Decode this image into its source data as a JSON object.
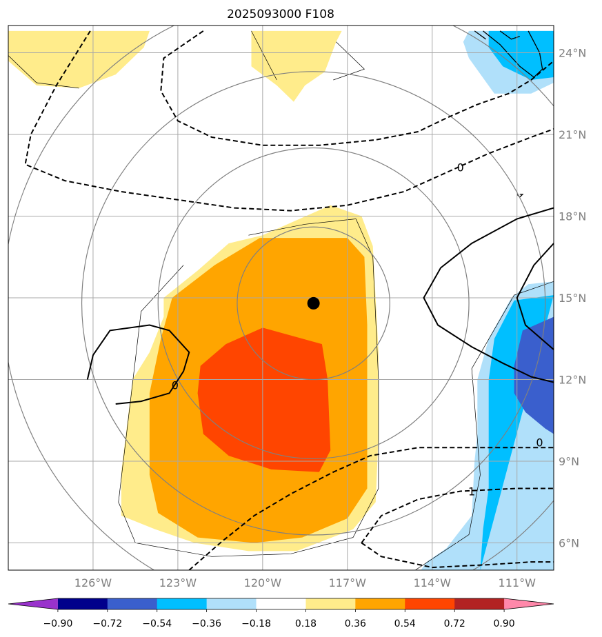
{
  "chart_data": {
    "type": "heatmap",
    "title": "2025093000 F108",
    "map": {
      "lon_range": [
        -129,
        -109.7
      ],
      "lat_range": [
        5,
        25
      ],
      "lon_ticks": [
        -126,
        -123,
        -120,
        -117,
        -114,
        -111
      ],
      "lon_tick_labels": [
        "126°W",
        "123°W",
        "120°W",
        "117°W",
        "114°W",
        "111°W"
      ],
      "lat_ticks": [
        6,
        9,
        12,
        15,
        18,
        21,
        24
      ],
      "lat_tick_labels": [
        "6°N",
        "9°N",
        "12°N",
        "15°N",
        "18°N",
        "21°N",
        "24°N"
      ],
      "lat_labels_side": "right",
      "grid": true,
      "center_marker": {
        "lon": -118.2,
        "lat": 14.8
      },
      "range_rings": [
        {
          "lon": -118.2,
          "lat": 14.8,
          "radius_deg": 2.7
        },
        {
          "lon": -118.2,
          "lat": 14.8,
          "radius_deg": 5.5
        },
        {
          "lon": -118.2,
          "lat": 14.8,
          "radius_deg": 8.2
        },
        {
          "lon": -118.2,
          "lat": 14.8,
          "radius_deg": 11.0
        }
      ]
    },
    "colorbar": {
      "boundaries": [
        -0.9,
        -0.72,
        -0.54,
        -0.36,
        -0.18,
        0.18,
        0.36,
        0.54,
        0.72,
        0.9
      ],
      "tick_labels": [
        "−0.90",
        "−0.72",
        "−0.54",
        "−0.36",
        "−0.18",
        "0.18",
        "0.36",
        "0.54",
        "0.72",
        "0.90"
      ],
      "colors": [
        "#9932cc",
        "#00008b",
        "#3a5fcd",
        "#00bfff",
        "#b0e0fa",
        "#ffffff",
        "#ffec8b",
        "#ffa500",
        "#ff4500",
        "#b22222",
        "#ff88aa"
      ],
      "extend": "both"
    },
    "filled_regions": [
      {
        "level": 0.18,
        "color": "#ffec8b",
        "polygons": [
          [
            [
              -124,
              24.8
            ],
            [
              -126.5,
              24.8
            ],
            [
              -129,
              24.8
            ],
            [
              -129,
              23.7
            ],
            [
              -128,
              22.8
            ],
            [
              -126.5,
              22.7
            ],
            [
              -125.2,
              23.2
            ],
            [
              -124.2,
              24.2
            ]
          ],
          [
            [
              -120.4,
              24.8
            ],
            [
              -120.4,
              23.5
            ],
            [
              -119.5,
              22.8
            ],
            [
              -118.9,
              22.2
            ],
            [
              -118.5,
              22.8
            ],
            [
              -117.8,
              23.3
            ],
            [
              -117.4,
              24.4
            ],
            [
              -117.2,
              24.8
            ]
          ],
          [
            [
              -120,
              17.3
            ],
            [
              -117.6,
              18.4
            ],
            [
              -116.5,
              18
            ],
            [
              -116.1,
              16.9
            ],
            [
              -115.9,
              13
            ],
            [
              -115.9,
              10
            ],
            [
              -116,
              7.5
            ],
            [
              -116.8,
              6.5
            ],
            [
              -118.8,
              5.7
            ],
            [
              -120.5,
              5.7
            ],
            [
              -122.4,
              6
            ],
            [
              -123.8,
              6.5
            ],
            [
              -125,
              7
            ],
            [
              -125,
              8.6
            ],
            [
              -124.6,
              12
            ],
            [
              -124,
              13
            ],
            [
              -123.5,
              14.3
            ],
            [
              -123.5,
              15
            ],
            [
              -122.3,
              16
            ],
            [
              -121.2,
              17
            ]
          ]
        ]
      },
      {
        "level": 0.36,
        "color": "#ffa500",
        "polygons": [
          [
            [
              -120.1,
              17.2
            ],
            [
              -117,
              17.2
            ],
            [
              -116.4,
              16.5
            ],
            [
              -116.3,
              14
            ],
            [
              -116.3,
              10
            ],
            [
              -116.3,
              8
            ],
            [
              -117,
              6.9
            ],
            [
              -118.6,
              6.2
            ],
            [
              -120.3,
              6
            ],
            [
              -122.3,
              6.2
            ],
            [
              -123.7,
              7.1
            ],
            [
              -124,
              8.5
            ],
            [
              -124,
              11.5
            ],
            [
              -123.6,
              13.5
            ],
            [
              -123.2,
              15
            ],
            [
              -121.7,
              16.2
            ]
          ]
        ]
      },
      {
        "level": 0.54,
        "color": "#ff4500",
        "polygons": [
          [
            [
              -120,
              13.9
            ],
            [
              -117.9,
              13.3
            ],
            [
              -117.7,
              12
            ],
            [
              -117.6,
              9.4
            ],
            [
              -118,
              8.6
            ],
            [
              -119.7,
              8.7
            ],
            [
              -121.2,
              9.2
            ],
            [
              -122.1,
              10
            ],
            [
              -122.3,
              11.5
            ],
            [
              -122.2,
              12.5
            ],
            [
              -121.3,
              13.3
            ]
          ]
        ]
      },
      {
        "level": -0.18,
        "color": "#b0e0fa",
        "polygons": [
          [
            [
              -112.7,
              24.8
            ],
            [
              -109.7,
              24.8
            ],
            [
              -109.7,
              22.9
            ],
            [
              -110.5,
              22.5
            ],
            [
              -111.8,
              22.5
            ],
            [
              -112.7,
              23.8
            ],
            [
              -112.9,
              24.4
            ]
          ],
          [
            [
              -109.7,
              15.6
            ],
            [
              -110.6,
              15.5
            ],
            [
              -111.2,
              15
            ],
            [
              -112,
              13.5
            ],
            [
              -112.4,
              12
            ],
            [
              -112.4,
              10
            ],
            [
              -112.5,
              9
            ],
            [
              -112.6,
              7
            ],
            [
              -113.5,
              5.8
            ],
            [
              -114.2,
              5.3
            ],
            [
              -114.4,
              5
            ],
            [
              -109.7,
              5
            ]
          ]
        ]
      },
      {
        "level": -0.36,
        "color": "#00bfff",
        "polygons": [
          [
            [
              -112,
              24.8
            ],
            [
              -109.7,
              24.8
            ],
            [
              -109.7,
              23.1
            ],
            [
              -110.5,
              23
            ],
            [
              -111.5,
              23.5
            ],
            [
              -112,
              24.2
            ]
          ],
          [
            [
              -109.7,
              15.1
            ],
            [
              -111.1,
              14.9
            ],
            [
              -111.8,
              13.5
            ],
            [
              -112,
              12
            ],
            [
              -112,
              10
            ],
            [
              -112,
              8
            ],
            [
              -112.2,
              6.5
            ],
            [
              -112.3,
              5
            ]
          ]
        ]
      },
      {
        "level": -0.54,
        "color": "#3a5fcd",
        "polygons": [
          [
            [
              -109.7,
              14.3
            ],
            [
              -110.8,
              13.8
            ],
            [
              -111.1,
              12.5
            ],
            [
              -111.1,
              11.5
            ],
            [
              -110.7,
              10.8
            ],
            [
              -110,
              10.2
            ],
            [
              -109.7,
              10
            ]
          ]
        ]
      }
    ],
    "contours": [
      {
        "style": "dashed",
        "label": "",
        "points": [
          [
            -126.1,
            24.8
          ],
          [
            -127.3,
            22.8
          ],
          [
            -128.2,
            21
          ],
          [
            -128.4,
            19.9
          ],
          [
            -127,
            19.3
          ],
          [
            -125,
            18.9
          ],
          [
            -123,
            18.6
          ],
          [
            -121,
            18.3
          ],
          [
            -119,
            18.2
          ],
          [
            -117,
            18.4
          ],
          [
            -115,
            18.9
          ],
          [
            -113.5,
            19.6
          ],
          [
            -112,
            20.3
          ],
          [
            -110.5,
            20.9
          ],
          [
            -109.7,
            21.2
          ]
        ]
      },
      {
        "style": "dashed",
        "label": "",
        "points": [
          [
            -122.1,
            24.8
          ],
          [
            -123.5,
            23.8
          ],
          [
            -123.6,
            22.6
          ],
          [
            -123,
            21.5
          ],
          [
            -121.8,
            20.9
          ],
          [
            -120,
            20.6
          ],
          [
            -118,
            20.6
          ],
          [
            -116,
            20.8
          ],
          [
            -114.5,
            21.1
          ],
          [
            -113.5,
            21.6
          ],
          [
            -112.4,
            22.1
          ],
          [
            -111.3,
            22.5
          ],
          [
            -110.5,
            23
          ],
          [
            -109.7,
            23.7
          ]
        ]
      },
      {
        "style": "dashed",
        "label": "",
        "points": [
          [
            -122.6,
            5
          ],
          [
            -121.5,
            6
          ],
          [
            -120.3,
            7
          ],
          [
            -119,
            7.8
          ],
          [
            -117.5,
            8.6
          ],
          [
            -116.2,
            9.2
          ],
          [
            -114.5,
            9.5
          ],
          [
            -112.5,
            9.5
          ],
          [
            -111,
            9.5
          ],
          [
            -109.7,
            9.5
          ]
        ]
      },
      {
        "style": "dashed",
        "label": "",
        "points": [
          [
            -116.5,
            6
          ],
          [
            -115.8,
            7
          ],
          [
            -114.5,
            7.6
          ],
          [
            -113,
            7.9
          ],
          [
            -111,
            8
          ],
          [
            -109.7,
            8
          ]
        ]
      },
      {
        "style": "dashed",
        "label": "",
        "points": [
          [
            -116.5,
            6
          ],
          [
            -115.8,
            5.5
          ],
          [
            -114,
            5.1
          ],
          [
            -112,
            5.2
          ],
          [
            -110.5,
            5.3
          ],
          [
            -109.7,
            5.3
          ]
        ]
      },
      {
        "style": "solid",
        "label": "",
        "points": [
          [
            -125.2,
            11.1
          ],
          [
            -124.3,
            11.2
          ],
          [
            -123.3,
            11.5
          ],
          [
            -122.8,
            12.3
          ],
          [
            -122.6,
            13
          ],
          [
            -123.3,
            13.8
          ],
          [
            -124,
            14
          ],
          [
            -125.4,
            13.8
          ],
          [
            -126,
            12.9
          ],
          [
            -126.2,
            12
          ]
        ]
      },
      {
        "style": "solid",
        "label": "",
        "points": [
          [
            -109.7,
            18.3
          ],
          [
            -111,
            17.9
          ],
          [
            -112.6,
            17
          ],
          [
            -113.7,
            16.1
          ],
          [
            -114.3,
            15
          ],
          [
            -113.8,
            14
          ],
          [
            -112.6,
            13.2
          ],
          [
            -111.5,
            12.6
          ],
          [
            -110.5,
            12.1
          ],
          [
            -109.7,
            11.9
          ]
        ]
      },
      {
        "style": "solid",
        "label": "",
        "points": [
          [
            -109.7,
            17
          ],
          [
            -110.4,
            16.2
          ],
          [
            -111,
            15
          ],
          [
            -110.7,
            14
          ],
          [
            -109.7,
            13.1
          ]
        ]
      }
    ],
    "contour_labels": [
      {
        "text": "0",
        "lon": -113,
        "lat": 19.8
      },
      {
        "text": "0",
        "lon": -123.1,
        "lat": 11.8
      },
      {
        "text": "0",
        "lon": -110.2,
        "lat": 9.7
      },
      {
        "text": "1",
        "lon": -112.6,
        "lat": 7.9
      }
    ],
    "coastlines": [
      [
        [
          -112.2,
          24.8
        ],
        [
          -111.6,
          24.3
        ],
        [
          -110.9,
          23.5
        ],
        [
          -110.4,
          23.1
        ],
        [
          -110.1,
          23.4
        ],
        [
          -110.2,
          24
        ],
        [
          -110.6,
          24.8
        ]
      ],
      [
        [
          -111.6,
          24.8
        ],
        [
          -111.2,
          24.5
        ],
        [
          -110.9,
          24.6
        ]
      ],
      [
        [
          -112.5,
          24.8
        ],
        [
          -112.1,
          24.5
        ]
      ],
      [
        [
          -110.9,
          18.8
        ],
        [
          -110.8,
          18.8
        ],
        [
          -110.9,
          18.7
        ],
        [
          -111,
          18.8
        ]
      ]
    ],
    "field_outlines": [
      [
        [
          -126.5,
          22.7
        ],
        [
          -128,
          22.9
        ],
        [
          -129,
          23.9
        ]
      ],
      [
        [
          -120.4,
          24.8
        ],
        [
          -119.5,
          23
        ]
      ],
      [
        [
          -117.4,
          24.4
        ],
        [
          -116.4,
          23.4
        ],
        [
          -117.5,
          23
        ]
      ],
      [
        [
          -120.5,
          17.3
        ],
        [
          -118.5,
          17.7
        ],
        [
          -116.7,
          17.9
        ],
        [
          -116.1,
          16.5
        ],
        [
          -115.9,
          12
        ],
        [
          -115.9,
          8
        ],
        [
          -116.8,
          6.2
        ],
        [
          -119,
          5.6
        ],
        [
          -121.8,
          5.5
        ],
        [
          -124.5,
          6
        ],
        [
          -125.1,
          7.5
        ],
        [
          -124.7,
          11
        ],
        [
          -124.3,
          14.5
        ],
        [
          -122.8,
          16.2
        ]
      ],
      [
        [
          -109.7,
          15.6
        ],
        [
          -111.1,
          15.1
        ],
        [
          -112.6,
          12.4
        ],
        [
          -112.3,
          8.5
        ],
        [
          -112.7,
          6.3
        ],
        [
          -114.6,
          5
        ]
      ]
    ]
  }
}
